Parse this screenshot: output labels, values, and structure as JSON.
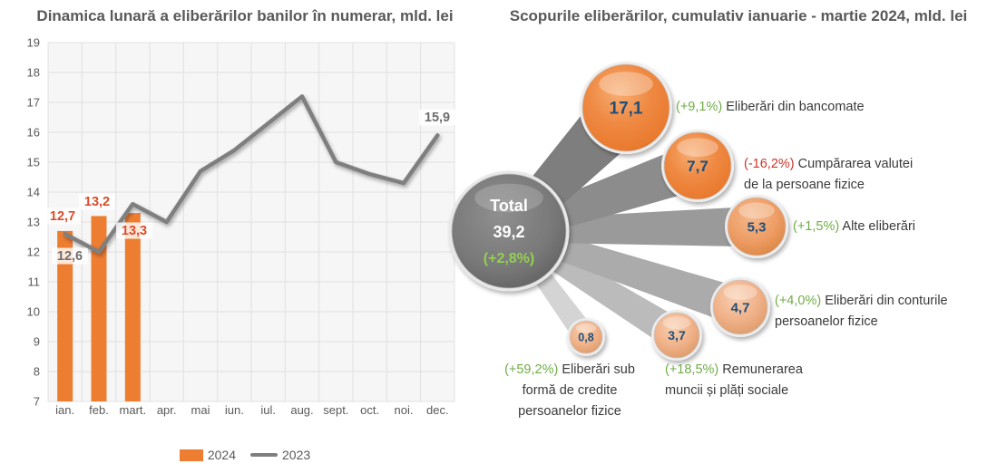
{
  "left_chart": {
    "title": "Dinamica lunară a eliberărilor banilor în numerar, mld. lei",
    "legend": [
      {
        "label": "2024",
        "swatch": "bar-swatch",
        "color": "#ED7D31"
      },
      {
        "label": "2023",
        "swatch": "line-swatch",
        "color": "#7F7F7F"
      }
    ]
  },
  "right_chart": {
    "title": "Scopurile eliberărilor, cumulativ ianuarie - martie 2024, mld. lei"
  },
  "colors": {
    "title_gray": "#595959",
    "bar_orange": "#ED7D31",
    "line_gray": "#7F7F7F",
    "bar_label_orange": "#DC4B28",
    "line_label_gray": "#6E6E6E",
    "bubble_value_navy": "#1F4E79",
    "green": "#70AD47",
    "red": "#C9372B",
    "center_green": "#92D050",
    "label_text": "#3A3A3A"
  },
  "chart_data": [
    {
      "type": "bar+line",
      "title": "Dinamica lunară a eliberărilor banilor în numerar, mld. lei",
      "categories": [
        "ian.",
        "feb.",
        "mart.",
        "apr.",
        "mai",
        "iun.",
        "iul.",
        "aug.",
        "sept.",
        "oct.",
        "noi.",
        "dec."
      ],
      "series": [
        {
          "name": "2024",
          "type": "bar",
          "color": "#ED7D31",
          "values": [
            12.7,
            13.2,
            13.3,
            null,
            null,
            null,
            null,
            null,
            null,
            null,
            null,
            null
          ],
          "data_labels": [
            "12,7",
            "13,2",
            "13,3"
          ]
        },
        {
          "name": "2023",
          "type": "line",
          "color": "#7F7F7F",
          "values": [
            12.6,
            12.0,
            13.6,
            13.0,
            14.7,
            15.4,
            16.3,
            17.2,
            15.0,
            14.6,
            14.3,
            15.9
          ],
          "shown_point_labels": {
            "0": "12,6",
            "11": "15,9"
          }
        }
      ],
      "ylim": [
        7,
        19
      ],
      "ytick_step": 1,
      "y_ticks": [
        7,
        8,
        9,
        10,
        11,
        12,
        13,
        14,
        15,
        16,
        17,
        18,
        19
      ],
      "grid": true,
      "legend_position": "bottom"
    },
    {
      "type": "bubble",
      "title": "Scopurile eliberărilor, cumulativ ianuarie - martie 2024, mld. lei",
      "total": {
        "label": "Total",
        "value": "39,2",
        "pct": "(+2,8%)",
        "pct_color": "#92D050"
      },
      "bubbles": [
        {
          "value": 17.1,
          "value_label": "17,1",
          "pct": "(+9,1%)",
          "pct_color": "#70AD47",
          "label_lines": [
            "Eliberări din bancomate"
          ]
        },
        {
          "value": 7.7,
          "value_label": "7,7",
          "pct": "(-16,2%)",
          "pct_color": "#C9372B",
          "label_lines": [
            "Cumpărarea valutei",
            "de la persoane fizice"
          ]
        },
        {
          "value": 5.3,
          "value_label": "5,3",
          "pct": "(+1,5%)",
          "pct_color": "#70AD47",
          "label_lines": [
            "Alte eliberări"
          ]
        },
        {
          "value": 4.7,
          "value_label": "4,7",
          "pct": "(+4,0%)",
          "pct_color": "#70AD47",
          "label_lines": [
            "Eliberări din conturile",
            "persoanelor fizice"
          ]
        },
        {
          "value": 3.7,
          "value_label": "3,7",
          "pct": "(+18,5%)",
          "pct_color": "#70AD47",
          "label_lines": [
            "Remunerarea",
            "muncii și plăți sociale"
          ]
        },
        {
          "value": 0.8,
          "value_label": "0,8",
          "pct": "(+59,2%)",
          "pct_color": "#70AD47",
          "label_lines": [
            "Eliberări sub",
            "formă de credite",
            "persoanelor fizice"
          ]
        }
      ]
    }
  ]
}
